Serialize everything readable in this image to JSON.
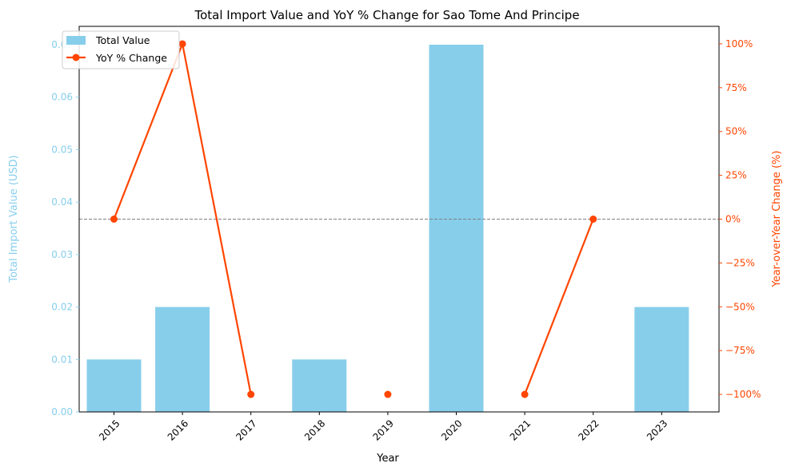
{
  "chart_data": {
    "type": "bar+line",
    "title": "Total Import Value and YoY % Change for Sao Tome And Principe",
    "xlabel": "Year",
    "ylabel_left": "Total Import Value (USD)",
    "ylabel_right": "Year-over-Year Change (%)",
    "categories": [
      "2015",
      "2016",
      "2017",
      "2018",
      "2019",
      "2020",
      "2021",
      "2022",
      "2023"
    ],
    "series": [
      {
        "name": "Total Value",
        "type": "bar",
        "axis": "left",
        "color": "#87ceeb",
        "values": [
          0.01,
          0.02,
          0,
          0.01,
          0,
          0.07,
          0,
          0,
          0.02
        ]
      },
      {
        "name": "YoY % Change",
        "type": "line",
        "axis": "right",
        "color": "#ff4500",
        "values": [
          0,
          100,
          -100,
          null,
          -100,
          null,
          -100,
          0,
          null
        ]
      }
    ],
    "ylim_left": [
      0,
      0.0735
    ],
    "ylim_right": [
      -110,
      110
    ],
    "yticks_left": [
      0.0,
      0.01,
      0.02,
      0.03,
      0.04,
      0.05,
      0.06,
      0.07
    ],
    "yticks_left_labels": [
      "0.00",
      "0.01",
      "0.02",
      "0.03",
      "0.04",
      "0.05",
      "0.06",
      "0.07"
    ],
    "yticks_right": [
      -100,
      -75,
      -50,
      -25,
      0,
      25,
      50,
      75,
      100
    ],
    "yticks_right_labels": [
      "−100%",
      "−75%",
      "−50%",
      "−25%",
      "0%",
      "25%",
      "50%",
      "75%",
      "100%"
    ],
    "reference_line": {
      "axis": "right",
      "value": 0,
      "style": "dashed",
      "color": "#808080"
    },
    "legend": {
      "placement": "top-left",
      "entries": [
        "Total Value",
        "YoY % Change"
      ]
    },
    "grid": false,
    "colors": {
      "left_axis": "#87ceeb",
      "right_axis": "#ff4500",
      "axis_line": "#000000"
    }
  }
}
